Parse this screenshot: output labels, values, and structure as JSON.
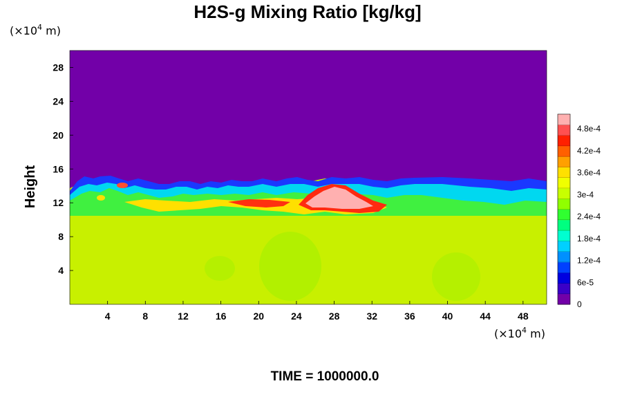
{
  "chart_data": {
    "type": "heatmap",
    "title": "H2S-g Mixing Ratio [kg/kg]",
    "xlabel": "",
    "ylabel": "Height",
    "x_unit": {
      "prefix": "(×10",
      "exp": "4",
      "suffix": " m)"
    },
    "y_unit": {
      "prefix": "(×10",
      "exp": "4",
      "suffix": " m)"
    },
    "xlim": [
      0,
      50.5
    ],
    "ylim": [
      0,
      30
    ],
    "x_ticks": [
      4,
      8,
      12,
      16,
      20,
      24,
      28,
      32,
      36,
      40,
      44,
      48
    ],
    "y_ticks": [
      4,
      8,
      12,
      16,
      20,
      24,
      28
    ],
    "colorbar": {
      "range": [
        0,
        0.00052
      ],
      "tick_values": [
        0,
        6e-05,
        0.00012,
        0.00018,
        0.00024,
        0.0003,
        0.00036,
        0.00042,
        0.00048
      ],
      "tick_labels": [
        "0",
        "6e-5",
        "1.2e-4",
        "1.8e-4",
        "2.4e-4",
        "3e-4",
        "3.6e-4",
        "4.2e-4",
        "4.8e-4"
      ],
      "colors": [
        "#7200a8",
        "#3a00c8",
        "#0000e0",
        "#0040ff",
        "#0090ff",
        "#00d0ff",
        "#00ffd0",
        "#00ff80",
        "#30ff30",
        "#90ff00",
        "#c8ff00",
        "#f0ff00",
        "#ffe000",
        "#ffa000",
        "#ff6000",
        "#ff2000",
        "#ff5050",
        "#ffb0b0"
      ]
    },
    "background_value": 0,
    "lower_region_value": 0.00033,
    "features": [
      {
        "name": "high-concentration-core",
        "x_range": [
          25,
          33
        ],
        "y_range": [
          11.2,
          13.6
        ],
        "value": 0.0005
      },
      {
        "name": "red-band-left",
        "x_range": [
          17,
          24
        ],
        "y_range": [
          11.6,
          12.3
        ],
        "value": 0.00045
      },
      {
        "name": "mixing-front-top",
        "x_range": [
          0,
          50.5
        ],
        "y_range": [
          12.5,
          15.5
        ],
        "value": 0.00012
      }
    ]
  },
  "footer": {
    "time_label": "TIME = 1000000.0"
  }
}
